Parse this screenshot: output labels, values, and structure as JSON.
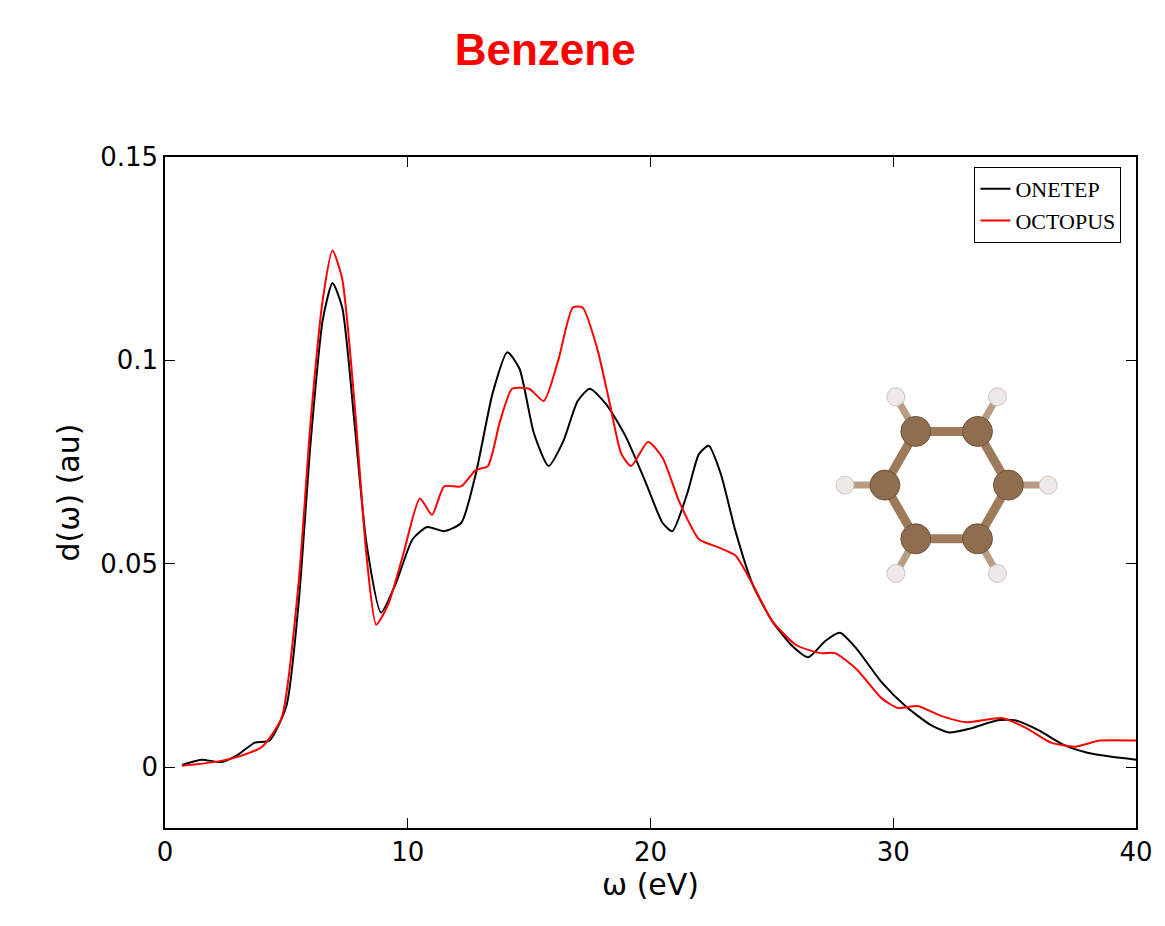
{
  "chart_data": {
    "type": "line",
    "title": "Benzene",
    "x_label": "ω (eV)",
    "y_label": "d(ω) (au)",
    "xlim": [
      0,
      40
    ],
    "xticks": [
      0,
      10,
      20,
      30,
      40
    ],
    "ylim": [
      -0.015,
      0.15
    ],
    "yticks": [
      0,
      0.05,
      0.1,
      0.15
    ],
    "grid": false,
    "legend": "top right",
    "series": [
      {
        "name": "ONETEP",
        "color": "#000000",
        "x": [
          0.7,
          1.5,
          2.3,
          3,
          3.7,
          4.3,
          5,
          5.5,
          6,
          6.5,
          6.9,
          7.3,
          7.8,
          8.3,
          8.9,
          9.5,
          10.2,
          10.8,
          11.5,
          12.2,
          12.8,
          13.5,
          14.1,
          14.6,
          15.2,
          15.8,
          16.4,
          17,
          17.5,
          18.2,
          19,
          19.8,
          20.5,
          20.9,
          21.5,
          22,
          22.4,
          22.9,
          23.5,
          24.2,
          25,
          25.8,
          26.5,
          27.2,
          27.8,
          28.5,
          29.5,
          30.5,
          31.5,
          32.3,
          33.2,
          34.3,
          35,
          36,
          37,
          38,
          39,
          40
        ],
        "values": [
          0.0005,
          0.0018,
          0.0012,
          0.003,
          0.006,
          0.0065,
          0.015,
          0.04,
          0.08,
          0.11,
          0.119,
          0.113,
          0.085,
          0.055,
          0.038,
          0.045,
          0.056,
          0.059,
          0.058,
          0.06,
          0.072,
          0.092,
          0.102,
          0.098,
          0.082,
          0.074,
          0.08,
          0.09,
          0.093,
          0.089,
          0.081,
          0.07,
          0.06,
          0.058,
          0.067,
          0.077,
          0.079,
          0.072,
          0.058,
          0.045,
          0.036,
          0.03,
          0.027,
          0.031,
          0.033,
          0.029,
          0.021,
          0.015,
          0.0105,
          0.0085,
          0.0095,
          0.0115,
          0.0115,
          0.009,
          0.0055,
          0.0035,
          0.0025,
          0.0018
        ]
      },
      {
        "name": "OCTOPUS",
        "color": "#ff0000",
        "x": [
          0.7,
          2,
          3,
          4,
          4.8,
          5.5,
          6,
          6.5,
          6.9,
          7.3,
          7.8,
          8.3,
          8.7,
          9.2,
          9.8,
          10.5,
          11,
          11.5,
          12.2,
          12.8,
          13.3,
          13.8,
          14.3,
          15,
          15.6,
          16.2,
          16.8,
          17.2,
          17.8,
          18.3,
          18.8,
          19.2,
          19.9,
          20.5,
          21.2,
          22,
          22.8,
          23.5,
          24.2,
          25,
          26,
          27,
          27.6,
          28.5,
          29.5,
          30.2,
          31,
          32,
          33,
          34.5,
          35.5,
          36.5,
          37.5,
          38.5,
          40
        ],
        "values": [
          0.0003,
          0.0012,
          0.0025,
          0.005,
          0.012,
          0.045,
          0.085,
          0.115,
          0.127,
          0.12,
          0.09,
          0.052,
          0.035,
          0.04,
          0.052,
          0.066,
          0.062,
          0.069,
          0.069,
          0.073,
          0.074,
          0.085,
          0.093,
          0.093,
          0.09,
          0.1,
          0.113,
          0.113,
          0.103,
          0.09,
          0.077,
          0.074,
          0.08,
          0.076,
          0.065,
          0.056,
          0.054,
          0.052,
          0.045,
          0.036,
          0.03,
          0.028,
          0.028,
          0.024,
          0.017,
          0.0145,
          0.015,
          0.0125,
          0.011,
          0.012,
          0.0095,
          0.006,
          0.005,
          0.0065,
          0.0065
        ]
      }
    ]
  }
}
